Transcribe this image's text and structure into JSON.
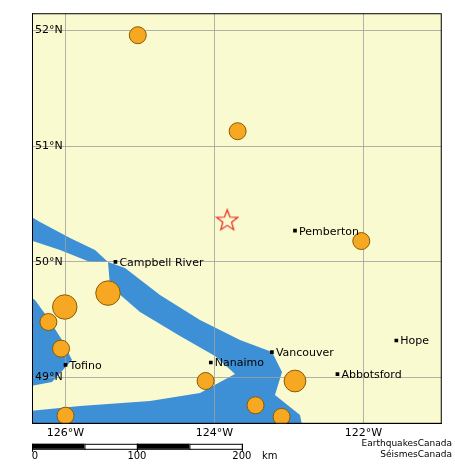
{
  "chart_data": {
    "type": "scatter",
    "xlim": [
      -126.45,
      -120.95
    ],
    "ylim": [
      48.6,
      52.15
    ],
    "xticks": [
      {
        "value": -126,
        "label": "126°W"
      },
      {
        "value": -124,
        "label": "124°W"
      },
      {
        "value": -122,
        "label": "122°W"
      }
    ],
    "yticks": [
      {
        "value": 49,
        "label": "49°N"
      },
      {
        "value": 50,
        "label": "50°N"
      },
      {
        "value": 51,
        "label": "51°N"
      },
      {
        "value": 52,
        "label": "52°N"
      }
    ],
    "grid": true,
    "series": [
      {
        "type": "scatter",
        "marker": "circle",
        "color": "#f7a823",
        "x": [
          -125.03,
          -123.69,
          -122.03,
          -126.01,
          -125.43,
          -126.23,
          -126.06,
          -124.12,
          -122.92,
          -123.45,
          -123.1,
          -126.0
        ],
        "values": [
          51.96,
          51.13,
          50.18,
          49.61,
          49.73,
          49.48,
          49.25,
          48.97,
          48.97,
          48.76,
          48.66,
          48.67
        ],
        "sizes": [
          2.5,
          2.5,
          2.5,
          3.6,
          3.6,
          2.5,
          2.5,
          2.5,
          3.2,
          2.5,
          2.5,
          2.5
        ]
      },
      {
        "type": "scatter",
        "marker": "star",
        "color": "#e8251f",
        "x": [
          -123.83
        ],
        "values": [
          50.36
        ]
      },
      {
        "type": "scatter",
        "marker": "square",
        "color": "#000000",
        "x": [
          -122.92,
          -125.33,
          -124.05,
          -123.23,
          -122.35,
          -121.56,
          -126.0
        ],
        "values": [
          50.27,
          50.0,
          49.13,
          49.22,
          49.03,
          49.32,
          49.11
        ],
        "labels": [
          "Pemberton",
          "Campbell River",
          "Nanaimo",
          "Vancouver",
          "Abbotsford",
          "Hope",
          "Tofino"
        ]
      }
    ],
    "scale_bar": {
      "ticks": [
        0,
        100,
        200
      ],
      "unit": "km"
    },
    "credits": [
      "EarthquakesCanada",
      "SéismesCanada"
    ]
  }
}
